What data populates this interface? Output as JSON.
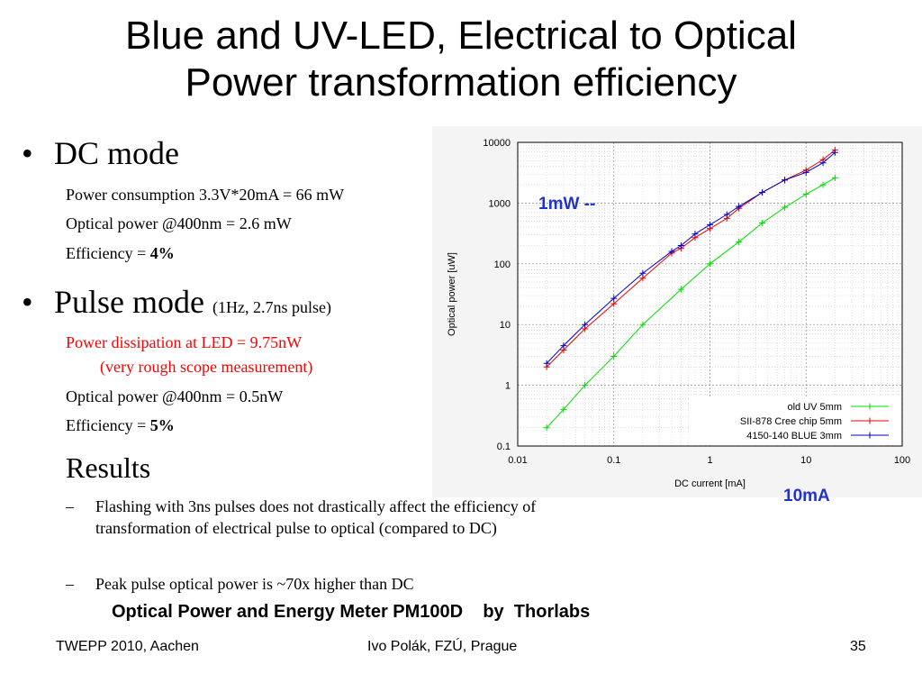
{
  "title": {
    "line1": "Blue and UV-LED, Electrical to Optical",
    "line2": "Power transformation efficiency"
  },
  "dc": {
    "heading": "DC mode",
    "consumption": "Power consumption  3.3V*20mA = 66 mW",
    "optical": "Optical power @400nm = 2.6 mW",
    "eff_label": "Efficiency = ",
    "eff_value": "4%"
  },
  "pulse": {
    "heading": "Pulse mode",
    "note": "(1Hz, 2.7ns pulse)",
    "dissipation": "Power dissipation at LED = 9.75nW",
    "rough": "(very rough scope measurement)",
    "optical": "Optical power @400nm = 0.5nW",
    "eff_label": "Efficiency = ",
    "eff_value": "5%"
  },
  "results": {
    "heading": "Results",
    "items": [
      "Flashing with 3ns pulses does not drastically affect the efficiency of transformation of electrical pulse to optical (compared to DC)",
      "Peak pulse optical power is ~70x higher than DC"
    ]
  },
  "annotations": {
    "one_mw": "1mW --",
    "ten_ma": "10mA"
  },
  "caption": "Optical Power and Energy Meter PM100D    by  Thorlabs",
  "footer": {
    "left": "TWEPP 2010, Aachen",
    "center": "Ivo Polák, FZÚ, Prague",
    "right": "35"
  },
  "colors": {
    "uv": "#00dd00",
    "cree": "#ee0000",
    "blue": "#0000cc",
    "annotation": "#2233cc",
    "red_text": "#ff0000"
  },
  "chart_data": {
    "type": "line",
    "xlabel": "DC current [mA]",
    "ylabel": "Optical power [uW]",
    "xscale": "log",
    "yscale": "log",
    "xlim": [
      0.01,
      100
    ],
    "ylim": [
      0.1,
      10000
    ],
    "xticks": [
      0.01,
      0.1,
      1,
      10,
      100
    ],
    "xtick_labels": [
      "0.01",
      "0.1",
      "1",
      "10",
      "100"
    ],
    "yticks": [
      0.1,
      1,
      10,
      100,
      1000,
      10000
    ],
    "ytick_labels": [
      "0.1",
      "1",
      "10",
      "100",
      "1000",
      "10000"
    ],
    "grid": true,
    "legend_position": "bottom-right",
    "series": [
      {
        "name": "old UV 5mm",
        "color": "#00dd00",
        "x": [
          0.02,
          0.03,
          0.05,
          0.1,
          0.2,
          0.5,
          1,
          2,
          3.5,
          6,
          10,
          15,
          20
        ],
        "y": [
          0.2,
          0.4,
          1,
          3,
          10,
          38,
          100,
          230,
          470,
          850,
          1400,
          2000,
          2600
        ]
      },
      {
        "name": "SII-878 Cree chip 5mm",
        "color": "#ee0000",
        "x": [
          0.02,
          0.03,
          0.05,
          0.1,
          0.2,
          0.4,
          0.5,
          0.7,
          1,
          1.5,
          2,
          3.5,
          6,
          10,
          15,
          20
        ],
        "y": [
          2,
          3.8,
          8.5,
          22,
          58,
          150,
          180,
          270,
          380,
          560,
          820,
          1500,
          2400,
          3500,
          5200,
          7500
        ]
      },
      {
        "name": "4150-140 BLUE 3mm",
        "color": "#0000cc",
        "x": [
          0.02,
          0.03,
          0.05,
          0.1,
          0.2,
          0.4,
          0.5,
          0.7,
          1,
          1.5,
          2,
          3.5,
          6,
          10,
          15,
          20
        ],
        "y": [
          2.3,
          4.5,
          10,
          27,
          70,
          160,
          200,
          310,
          440,
          650,
          880,
          1500,
          2400,
          3200,
          4600,
          6800
        ]
      }
    ]
  }
}
